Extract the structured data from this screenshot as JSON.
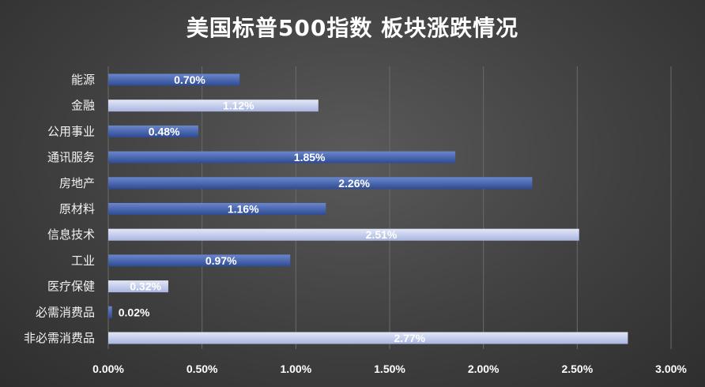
{
  "chart_data": {
    "type": "bar",
    "orientation": "horizontal",
    "title": "美国标普500指数 板块涨跌情况",
    "categories": [
      "能源",
      "金融",
      "公用事业",
      "通讯服务",
      "房地产",
      "原材料",
      "信息技术",
      "工业",
      "医疗保健",
      "必需消费品",
      "非必需消费品"
    ],
    "values": [
      0.7,
      1.12,
      0.48,
      1.85,
      2.26,
      1.16,
      2.51,
      0.97,
      0.32,
      0.02,
      2.77
    ],
    "value_labels": [
      "0.70%",
      "1.12%",
      "0.48%",
      "1.85%",
      "2.26%",
      "1.16%",
      "2.51%",
      "0.97%",
      "0.32%",
      "0.02%",
      "2.77%"
    ],
    "xlim": [
      0,
      3.0
    ],
    "x_ticks": [
      "0.00%",
      "0.50%",
      "1.00%",
      "1.50%",
      "2.00%",
      "2.50%",
      "3.00%"
    ],
    "grid": "vertical",
    "colors": {
      "dark_bar": "#4a6ab5",
      "light_bar": "#c5cdec",
      "dark_label": "#ffffff",
      "light_label": "#ffffff",
      "grid": "#6a6a6a"
    },
    "bar_styles": [
      "dark",
      "light",
      "dark",
      "dark",
      "dark",
      "dark",
      "light",
      "dark",
      "light",
      "dark",
      "light"
    ]
  }
}
